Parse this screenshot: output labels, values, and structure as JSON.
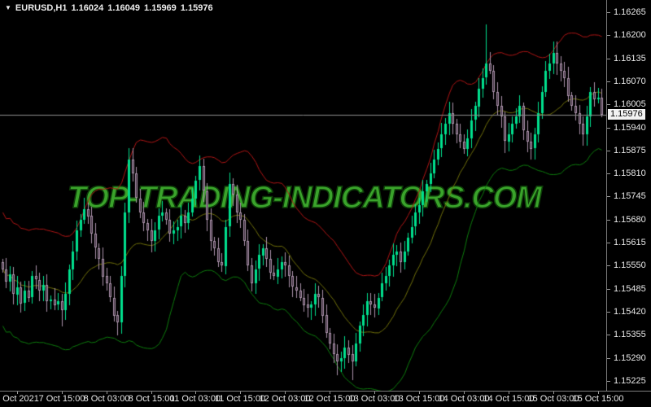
{
  "header": {
    "symbol_period": "EURUSD,H1",
    "open": "1.16024",
    "high": "1.16049",
    "low": "1.15969",
    "close": "1.15976",
    "dropdown_icon": "symbol-dropdown"
  },
  "watermark": {
    "text": "TOP-TRADING-INDICATORS.COM",
    "color": "#3aa32b"
  },
  "price_axis": {
    "labels": [
      "1.16265",
      "1.16200",
      "1.16135",
      "1.16070",
      "1.16005",
      "1.15940",
      "1.15875",
      "1.15810",
      "1.15745",
      "1.15680",
      "1.15615",
      "1.15550",
      "1.15485",
      "1.15420",
      "1.15355",
      "1.15290",
      "1.15225"
    ],
    "current_price": "1.15976"
  },
  "time_axis": {
    "labels": [
      "7 Oct 2021",
      "7 Oct 15:00",
      "8 Oct 03:00",
      "8 Oct 15:00",
      "11 Oct 03:00",
      "11 Oct 15:00",
      "12 Oct 03:00",
      "12 Oct 15:00",
      "13 Oct 03:00",
      "13 Oct 15:00",
      "14 Oct 03:00",
      "14 Oct 15:00",
      "15 Oct 03:00",
      "15 Oct 15:00"
    ]
  },
  "chart_data": {
    "type": "candlestick",
    "symbol": "EURUSD",
    "timeframe": "H1",
    "title": "",
    "ylim": [
      1.152,
      1.163
    ],
    "y_tick_step": 0.00065,
    "y_tick_top": 1.16265,
    "y_tick_bottom": 1.15225,
    "bid_price": 1.15976,
    "grid": false,
    "closes": [
      1.1554,
      1.15505,
      1.15525,
      1.1547,
      1.1549,
      1.15445,
      1.1548,
      1.1546,
      1.1552,
      1.1551,
      1.1548,
      1.15495,
      1.1545,
      1.15455,
      1.1544,
      1.1545,
      1.15425,
      1.1547,
      1.1554,
      1.1559,
      1.1565,
      1.1568,
      1.1571,
      1.1569,
      1.1564,
      1.156,
      1.1557,
      1.1552,
      1.155,
      1.1546,
      1.1541,
      1.1539,
      1.1552,
      1.157,
      1.1585,
      1.1581,
      1.1574,
      1.157,
      1.1567,
      1.1565,
      1.1562,
      1.1565,
      1.1569,
      1.157,
      1.1568,
      1.1564,
      1.1565,
      1.1566,
      1.1569,
      1.1567,
      1.157,
      1.1574,
      1.1579,
      1.1583,
      1.1576,
      1.1568,
      1.1562,
      1.156,
      1.1556,
      1.1555,
      1.1566,
      1.1578,
      1.1575,
      1.157,
      1.1568,
      1.1562,
      1.1555,
      1.155,
      1.1554,
      1.1558,
      1.156,
      1.1557,
      1.1553,
      1.1552,
      1.1554,
      1.1556,
      1.1555,
      1.1552,
      1.1549,
      1.1548,
      1.1546,
      1.1544,
      1.1543,
      1.1544,
      1.1547,
      1.1546,
      1.1541,
      1.1536,
      1.1533,
      1.153,
      1.1528,
      1.1529,
      1.1532,
      1.153,
      1.1528,
      1.1533,
      1.1538,
      1.1541,
      1.1545,
      1.1544,
      1.1543,
      1.1546,
      1.155,
      1.1552,
      1.1555,
      1.1558,
      1.1559,
      1.1556,
      1.1559,
      1.1563,
      1.1566,
      1.157,
      1.1572,
      1.1576,
      1.1578,
      1.1581,
      1.1585,
      1.1588,
      1.1592,
      1.1595,
      1.1598,
      1.1595,
      1.1592,
      1.159,
      1.1588,
      1.1591,
      1.1596,
      1.16,
      1.1605,
      1.1608,
      1.1612,
      1.161,
      1.1604,
      1.16,
      1.1597,
      1.159,
      1.1592,
      1.1595,
      1.1597,
      1.16,
      1.1593,
      1.159,
      1.1588,
      1.1592,
      1.1598,
      1.1604,
      1.161,
      1.1612,
      1.1615,
      1.1612,
      1.161,
      1.1608,
      1.1603,
      1.16,
      1.1598,
      1.1595,
      1.1592,
      1.1597,
      1.1604,
      1.1602,
      1.16024,
      1.15976
    ],
    "last_candle": {
      "open": 1.16024,
      "high": 1.16049,
      "low": 1.15969,
      "close": 1.15976
    },
    "wick_overrides": {
      "16": {
        "l": 1.1538
      },
      "31": {
        "l": 1.15355
      },
      "34": {
        "h": 1.15882
      },
      "53": {
        "h": 1.1586
      },
      "61": {
        "h": 1.158
      },
      "90": {
        "l": 1.1524
      },
      "94": {
        "l": 1.15228
      },
      "120": {
        "h": 1.16012
      },
      "130": {
        "h": 1.1623
      },
      "148": {
        "h": 1.16182
      }
    },
    "bollinger": {
      "period": 16,
      "deviation": 2.2
    },
    "legend_position": "none",
    "colors": {
      "background": "#000000",
      "up_candle": "#00e08e",
      "down_candle_fill": "#3a2d3a",
      "down_candle_border": "#ab92ab",
      "upper_band": "#b01515",
      "middle_band": "#70700a",
      "lower_band": "#0d7d0d",
      "bid_line": "#8c8c8c",
      "axis_text": "#e8e8e8"
    }
  }
}
